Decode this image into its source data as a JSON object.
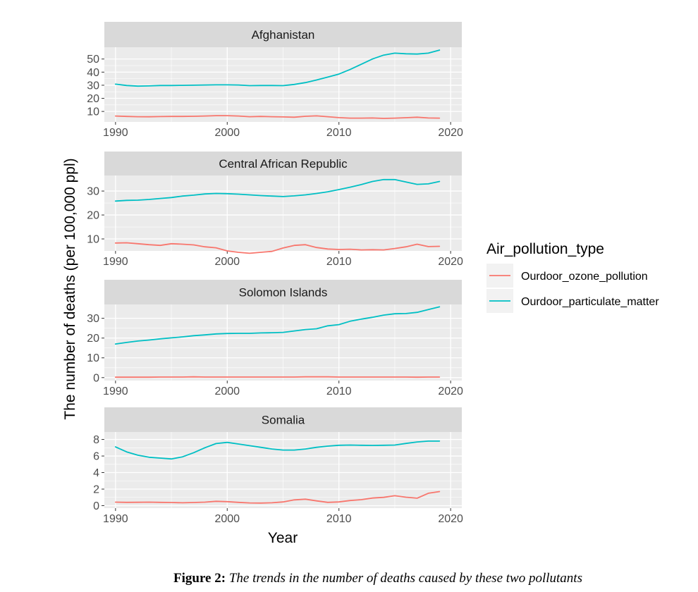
{
  "chart_data": {
    "type": "line",
    "xlabel": "Year",
    "ylabel": "The number of deaths (per 100,000 ppl)",
    "legend": {
      "title": "Air_pollution_type",
      "placement": "right",
      "entries": [
        {
          "name": "Ourdoor_ozone_pollution",
          "color": "#F8766D"
        },
        {
          "name": "Ourdoor_particulate_matter",
          "color": "#00BFC4"
        }
      ]
    },
    "x_ticks": [
      1990,
      2000,
      2010,
      2020
    ],
    "xlim": [
      1989,
      2021
    ],
    "grid": true,
    "panels": [
      {
        "title": "Afghanistan",
        "ylim": [
          2,
          59
        ],
        "y_ticks": [
          10,
          20,
          30,
          40,
          50
        ],
        "x": [
          1990,
          1991,
          1992,
          1993,
          1994,
          1995,
          1996,
          1997,
          1998,
          1999,
          2000,
          2001,
          2002,
          2003,
          2004,
          2005,
          2006,
          2007,
          2008,
          2009,
          2010,
          2011,
          2012,
          2013,
          2014,
          2015,
          2016,
          2017,
          2018,
          2019
        ],
        "series": [
          {
            "name": "Ourdoor_ozone_pollution",
            "values": [
              6.5,
              6.2,
              6.0,
              5.9,
              6.1,
              6.2,
              6.2,
              6.3,
              6.5,
              6.8,
              6.8,
              6.5,
              6.0,
              6.2,
              6.0,
              5.8,
              5.6,
              6.3,
              6.6,
              6.0,
              5.3,
              4.9,
              4.9,
              5.0,
              4.7,
              4.9,
              5.2,
              5.6,
              5.0,
              4.9
            ]
          },
          {
            "name": "Ourdoor_particulate_matter",
            "values": [
              30.8,
              29.8,
              29.3,
              29.5,
              29.8,
              29.8,
              29.9,
              30.0,
              30.2,
              30.3,
              30.3,
              30.2,
              29.7,
              29.8,
              29.8,
              29.7,
              30.6,
              32.0,
              34.0,
              36.2,
              38.5,
              42.0,
              46.0,
              50.0,
              53.0,
              54.5,
              54.0,
              53.8,
              54.5,
              56.8
            ]
          }
        ]
      },
      {
        "title": "Central African Republic",
        "ylim": [
          5,
          36.5
        ],
        "y_ticks": [
          10,
          20,
          30
        ],
        "x": [
          1990,
          1991,
          1992,
          1993,
          1994,
          1995,
          1996,
          1997,
          1998,
          1999,
          2000,
          2001,
          2002,
          2003,
          2004,
          2005,
          2006,
          2007,
          2008,
          2009,
          2010,
          2011,
          2012,
          2013,
          2014,
          2015,
          2016,
          2017,
          2018,
          2019
        ],
        "series": [
          {
            "name": "Ourdoor_ozone_pollution",
            "values": [
              8.3,
              8.4,
              8.0,
              7.6,
              7.3,
              8.0,
              7.8,
              7.5,
              6.7,
              6.3,
              5.0,
              4.4,
              4.0,
              4.4,
              4.8,
              6.2,
              7.3,
              7.6,
              6.4,
              5.8,
              5.6,
              5.7,
              5.4,
              5.5,
              5.4,
              6.0,
              6.7,
              7.8,
              6.8,
              6.9
            ]
          },
          {
            "name": "Ourdoor_particulate_matter",
            "values": [
              25.8,
              26.1,
              26.2,
              26.5,
              26.9,
              27.3,
              27.9,
              28.3,
              28.8,
              29.0,
              28.9,
              28.7,
              28.4,
              28.1,
              27.9,
              27.7,
              28.0,
              28.4,
              29.0,
              29.7,
              30.6,
              31.6,
              32.7,
              34.0,
              34.8,
              34.8,
              33.8,
              32.8,
              33.0,
              34.0
            ]
          }
        ]
      },
      {
        "title": "Solomon Islands",
        "ylim": [
          -1.5,
          37
        ],
        "y_ticks": [
          0,
          10,
          20,
          30
        ],
        "x": [
          1990,
          1991,
          1992,
          1993,
          1994,
          1995,
          1996,
          1997,
          1998,
          1999,
          2000,
          2001,
          2002,
          2003,
          2004,
          2005,
          2006,
          2007,
          2008,
          2009,
          2010,
          2011,
          2012,
          2013,
          2014,
          2015,
          2016,
          2017,
          2018,
          2019
        ],
        "series": [
          {
            "name": "Ourdoor_ozone_pollution",
            "values": [
              0.2,
              0.2,
              0.2,
              0.2,
              0.3,
              0.3,
              0.3,
              0.4,
              0.3,
              0.3,
              0.3,
              0.3,
              0.3,
              0.3,
              0.3,
              0.3,
              0.3,
              0.4,
              0.4,
              0.4,
              0.3,
              0.3,
              0.3,
              0.3,
              0.3,
              0.3,
              0.3,
              0.2,
              0.3,
              0.3
            ]
          },
          {
            "name": "Ourdoor_particulate_matter",
            "values": [
              17.0,
              17.8,
              18.5,
              19.0,
              19.6,
              20.1,
              20.6,
              21.2,
              21.6,
              22.1,
              22.3,
              22.4,
              22.4,
              22.6,
              22.7,
              22.9,
              23.6,
              24.3,
              24.7,
              26.2,
              26.8,
              28.5,
              29.6,
              30.5,
              31.6,
              32.3,
              32.4,
              33.0,
              34.4,
              35.8
            ]
          }
        ]
      },
      {
        "title": "Somalia",
        "ylim": [
          -0.3,
          8.9
        ],
        "y_ticks": [
          0,
          2,
          4,
          6,
          8
        ],
        "x": [
          1990,
          1991,
          1992,
          1993,
          1994,
          1995,
          1996,
          1997,
          1998,
          1999,
          2000,
          2001,
          2002,
          2003,
          2004,
          2005,
          2006,
          2007,
          2008,
          2009,
          2010,
          2011,
          2012,
          2013,
          2014,
          2015,
          2016,
          2017,
          2018,
          2019
        ],
        "series": [
          {
            "name": "Ourdoor_ozone_pollution",
            "values": [
              0.42,
              0.4,
              0.41,
              0.42,
              0.4,
              0.38,
              0.35,
              0.38,
              0.42,
              0.53,
              0.48,
              0.4,
              0.33,
              0.31,
              0.35,
              0.45,
              0.7,
              0.78,
              0.58,
              0.4,
              0.45,
              0.62,
              0.72,
              0.92,
              1.0,
              1.2,
              1.02,
              0.9,
              1.5,
              1.7
            ]
          },
          {
            "name": "Ourdoor_particulate_matter",
            "values": [
              7.1,
              6.5,
              6.1,
              5.85,
              5.75,
              5.65,
              5.9,
              6.4,
              7.0,
              7.5,
              7.65,
              7.45,
              7.25,
              7.05,
              6.85,
              6.72,
              6.72,
              6.85,
              7.05,
              7.2,
              7.3,
              7.32,
              7.3,
              7.28,
              7.3,
              7.32,
              7.52,
              7.7,
              7.8,
              7.8
            ]
          }
        ]
      }
    ]
  },
  "caption": {
    "label": "Figure 2:",
    "text": "The trends in the number of deaths caused by these two pollutants"
  }
}
